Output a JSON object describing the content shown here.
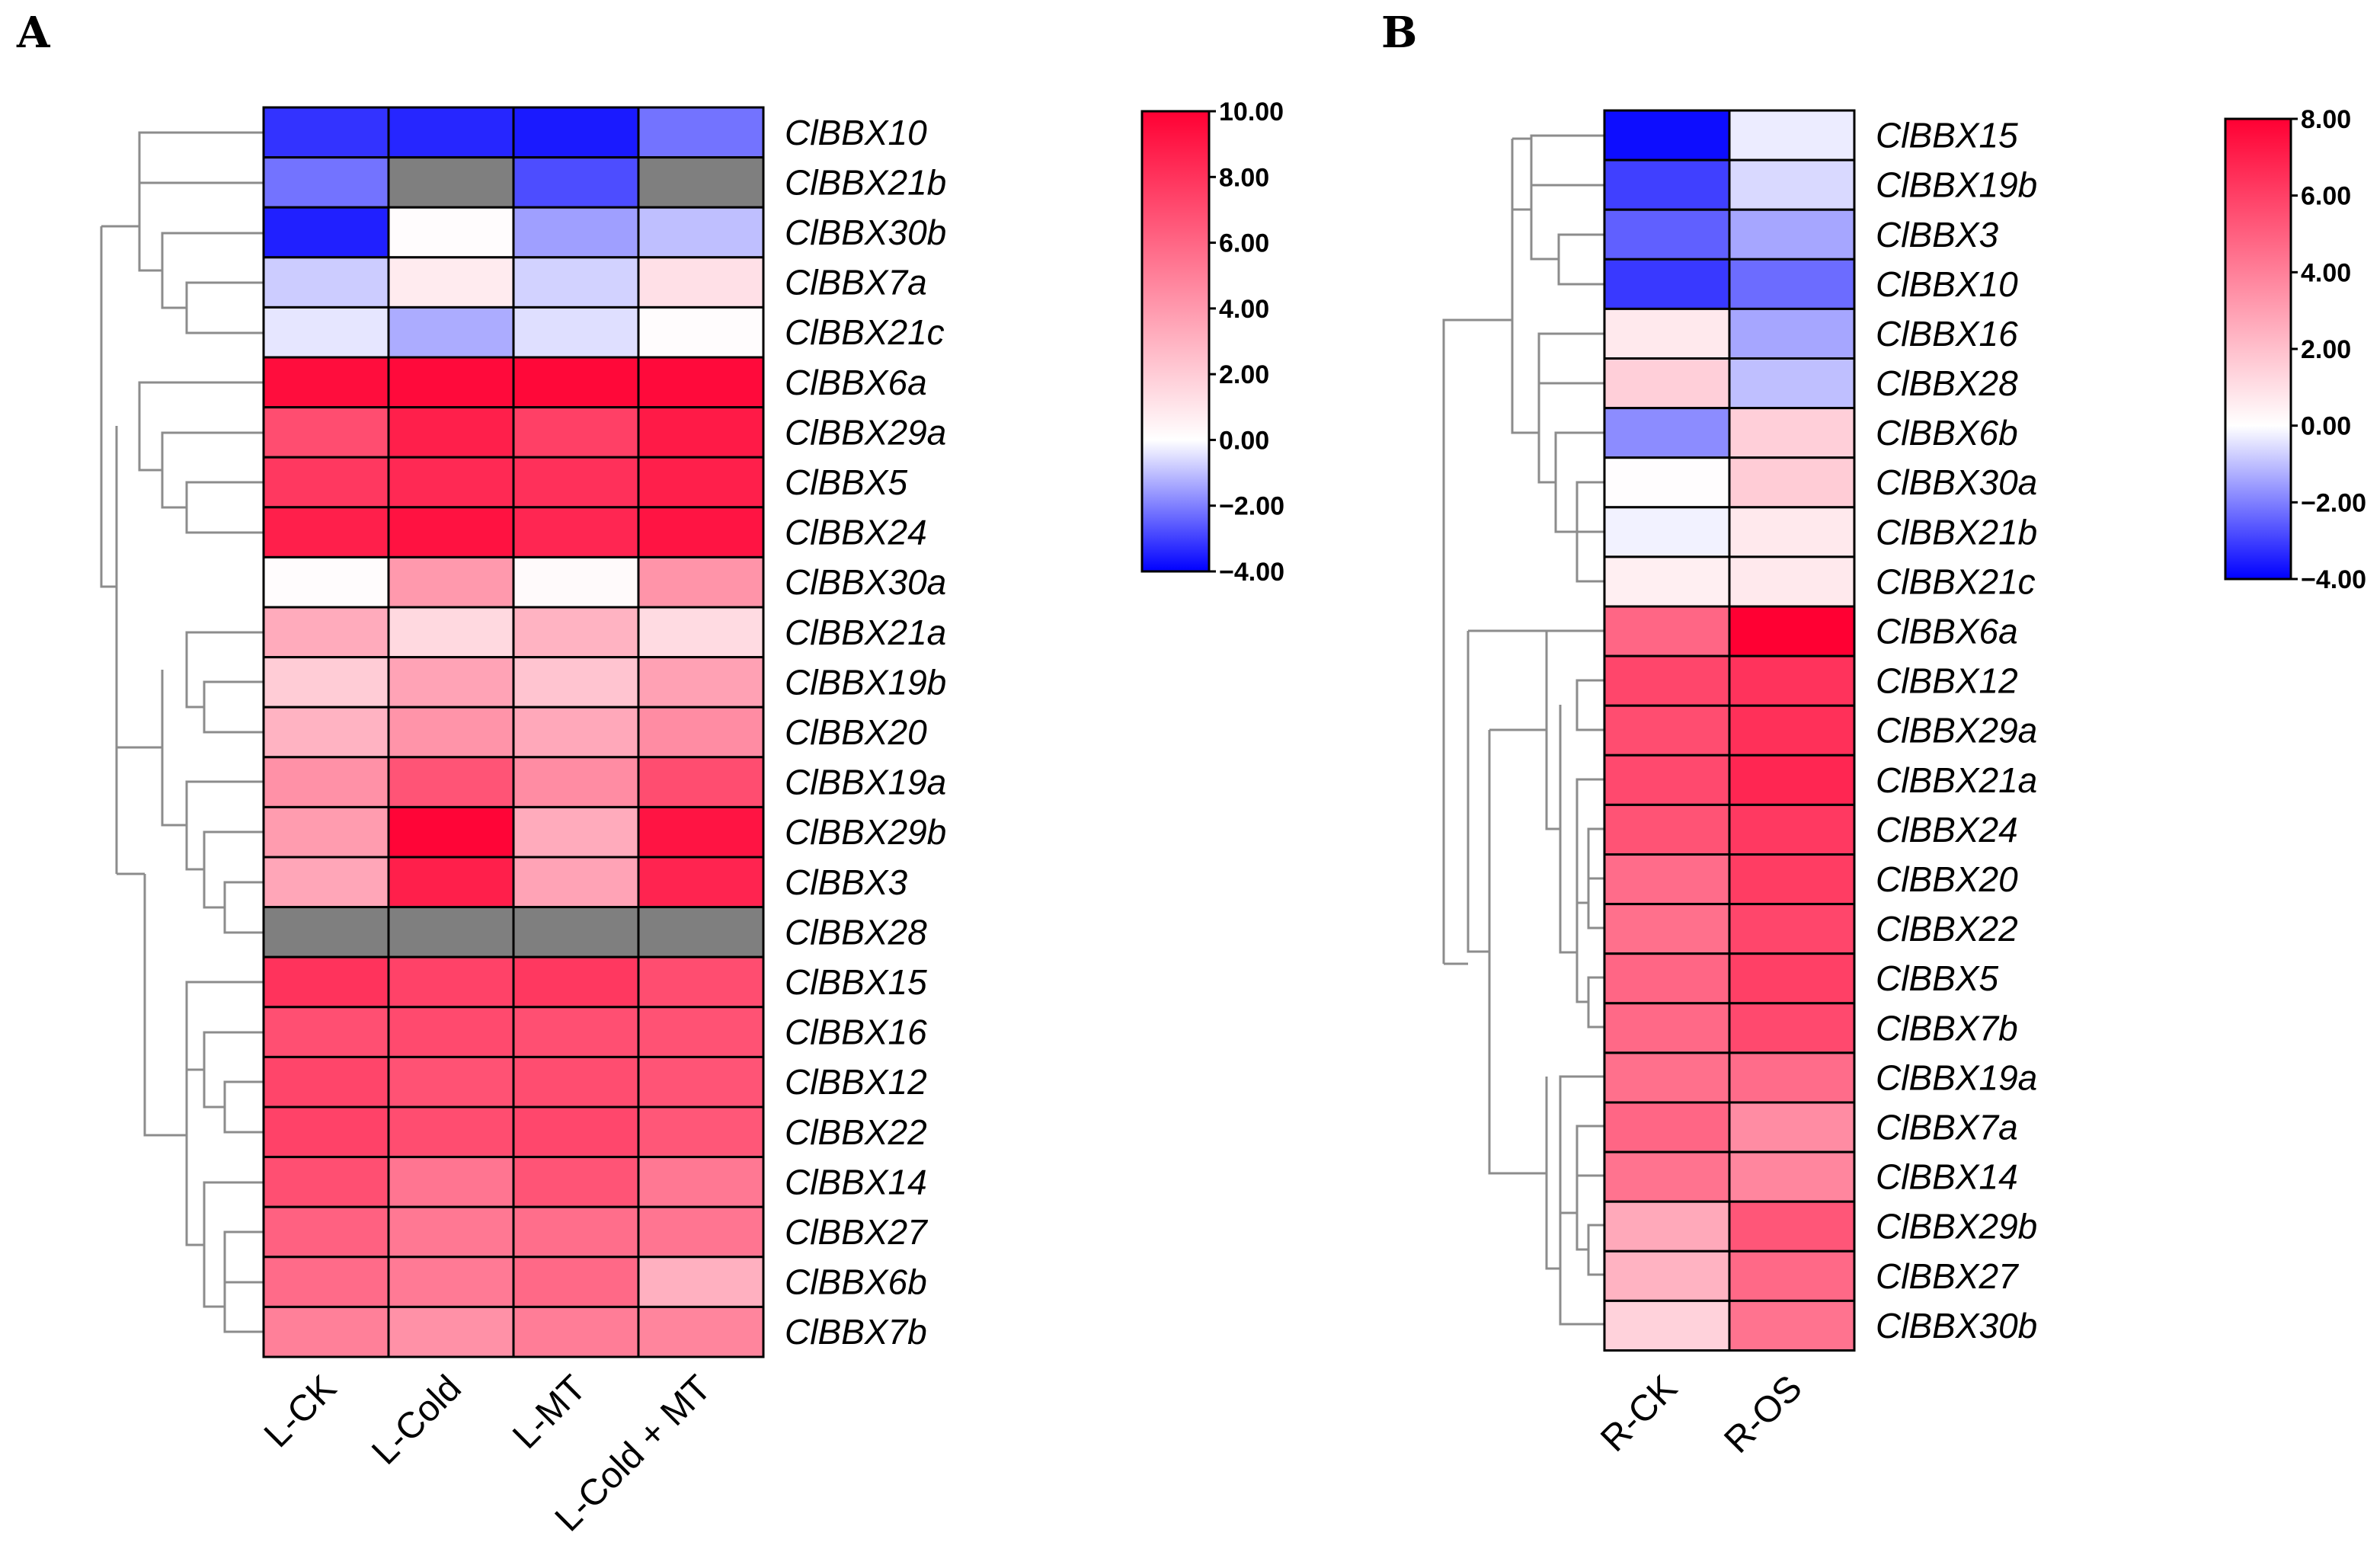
{
  "figure": {
    "missing_color": "#7f7f7f",
    "colors": {
      "low": "#0000ff",
      "mid": "#ffffff",
      "high": "#ff0033"
    }
  },
  "chart_data": [
    {
      "type": "heatmap",
      "panel": "A",
      "title": "",
      "columns": [
        "L-CK",
        "L-Cold",
        "L-MT",
        "L-Cold + MT"
      ],
      "rows": [
        "ClBBX10",
        "ClBBX21b",
        "ClBBX30b",
        "ClBBX7a",
        "ClBBX21c",
        "ClBBX6a",
        "ClBBX29a",
        "ClBBX5",
        "ClBBX24",
        "ClBBX30a",
        "ClBBX21a",
        "ClBBX19b",
        "ClBBX20",
        "ClBBX19a",
        "ClBBX29b",
        "ClBBX3",
        "ClBBX28",
        "ClBBX15",
        "ClBBX16",
        "ClBBX12",
        "ClBBX22",
        "ClBBX14",
        "ClBBX27",
        "ClBBX6b",
        "ClBBX7b"
      ],
      "values": [
        [
          -3.2,
          -3.4,
          -3.6,
          -2.2
        ],
        [
          -2.2,
          null,
          -2.8,
          null
        ],
        [
          -3.5,
          0.1,
          -1.5,
          -1.0
        ],
        [
          -0.8,
          0.8,
          -0.7,
          1.2
        ],
        [
          -0.4,
          -1.3,
          -0.5,
          0.1
        ],
        [
          9.5,
          9.6,
          9.7,
          9.6
        ],
        [
          7.0,
          8.8,
          7.5,
          9.0
        ],
        [
          7.8,
          8.4,
          8.1,
          8.8
        ],
        [
          8.8,
          9.3,
          8.5,
          9.2
        ],
        [
          0.1,
          4.0,
          0.2,
          4.2
        ],
        [
          3.3,
          1.5,
          3.0,
          1.4
        ],
        [
          2.0,
          3.6,
          2.3,
          3.7
        ],
        [
          3.0,
          4.2,
          3.4,
          4.5
        ],
        [
          4.3,
          6.7,
          4.5,
          7.0
        ],
        [
          3.9,
          9.8,
          3.3,
          9.2
        ],
        [
          3.5,
          8.8,
          3.6,
          8.6
        ],
        [
          null,
          null,
          null,
          null
        ],
        [
          8.0,
          7.4,
          7.8,
          7.0
        ],
        [
          6.9,
          7.1,
          6.9,
          6.8
        ],
        [
          7.3,
          6.8,
          7.0,
          6.7
        ],
        [
          7.4,
          7.0,
          7.2,
          6.6
        ],
        [
          6.9,
          5.4,
          6.7,
          5.3
        ],
        [
          6.2,
          5.3,
          5.7,
          5.4
        ],
        [
          5.8,
          5.2,
          5.9,
          3.1
        ],
        [
          5.0,
          4.3,
          5.1,
          4.8
        ]
      ],
      "colorbar": {
        "min": -4,
        "max": 10,
        "ticks": [
          "10.00",
          "8.00",
          "6.00",
          "4.00",
          "2.00",
          "0.00",
          "−2.00",
          "−4.00"
        ]
      }
    },
    {
      "type": "heatmap",
      "panel": "B",
      "title": "",
      "columns": [
        "R-CK",
        "R-OS"
      ],
      "rows": [
        "ClBBX15",
        "ClBBX19b",
        "ClBBX3",
        "ClBBX10",
        "ClBBX16",
        "ClBBX28",
        "ClBBX6b",
        "ClBBX30a",
        "ClBBX21b",
        "ClBBX21c",
        "ClBBX6a",
        "ClBBX12",
        "ClBBX29a",
        "ClBBX21a",
        "ClBBX24",
        "ClBBX20",
        "ClBBX22",
        "ClBBX5",
        "ClBBX7b",
        "ClBBX19a",
        "ClBBX7a",
        "ClBBX14",
        "ClBBX29b",
        "ClBBX27",
        "ClBBX30b"
      ],
      "values": [
        [
          -3.8,
          -0.3
        ],
        [
          -3.0,
          -0.6
        ],
        [
          -2.5,
          -1.4
        ],
        [
          -3.1,
          -2.3
        ],
        [
          0.7,
          -1.4
        ],
        [
          1.5,
          -1.0
        ],
        [
          -1.8,
          1.5
        ],
        [
          0.05,
          1.6
        ],
        [
          -0.2,
          0.7
        ],
        [
          0.5,
          0.7
        ],
        [
          4.8,
          8.0
        ],
        [
          5.8,
          6.4
        ],
        [
          5.6,
          6.5
        ],
        [
          5.7,
          6.8
        ],
        [
          5.4,
          6.2
        ],
        [
          4.6,
          6.1
        ],
        [
          4.5,
          5.8
        ],
        [
          4.8,
          6.0
        ],
        [
          4.7,
          5.7
        ],
        [
          4.5,
          4.6
        ],
        [
          4.8,
          3.6
        ],
        [
          4.4,
          3.8
        ],
        [
          2.7,
          5.3
        ],
        [
          2.4,
          4.7
        ],
        [
          1.4,
          4.4
        ]
      ],
      "colorbar": {
        "min": -4,
        "max": 8,
        "ticks": [
          "8.00",
          "6.00",
          "4.00",
          "2.00",
          "0.00",
          "−2.00",
          "−4.00"
        ]
      }
    }
  ]
}
